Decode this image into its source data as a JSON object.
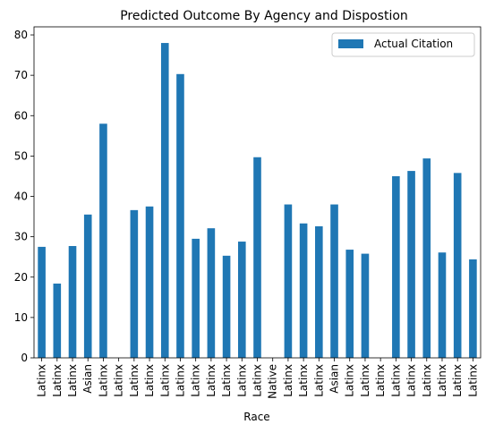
{
  "chart_data": {
    "type": "bar",
    "title": "Predicted Outcome By Agency and Dispostion",
    "xlabel": "Race",
    "ylabel": "",
    "ylim": [
      0,
      82
    ],
    "yticks": [
      0,
      10,
      20,
      30,
      40,
      50,
      60,
      70,
      80
    ],
    "grid": false,
    "legend_position": "top-right",
    "categories": [
      "Latinx",
      "Latinx",
      "Latinx",
      "Asian",
      "Latinx",
      "Latinx",
      "Latinx",
      "Latinx",
      "Latinx",
      "Latinx",
      "Latinx",
      "Latinx",
      "Latinx",
      "Latinx",
      "Latinx",
      "Native",
      "Latinx",
      "Latinx",
      "Latinx",
      "Asian",
      "Latinx",
      "Latinx",
      "Latinx",
      "Latinx",
      "Latinx",
      "Latinx",
      "Latinx",
      "Latinx",
      "Latinx"
    ],
    "series": [
      {
        "name": "Actual Citation",
        "color": "#1f77b4",
        "values": [
          27.5,
          18.4,
          27.7,
          35.5,
          58.0,
          0,
          36.6,
          37.5,
          78.0,
          70.3,
          29.5,
          32.1,
          25.3,
          28.8,
          49.7,
          0,
          38.0,
          33.3,
          32.6,
          38.0,
          26.8,
          25.8,
          0,
          45.0,
          46.3,
          49.4,
          26.1,
          45.8,
          24.4
        ]
      }
    ]
  }
}
